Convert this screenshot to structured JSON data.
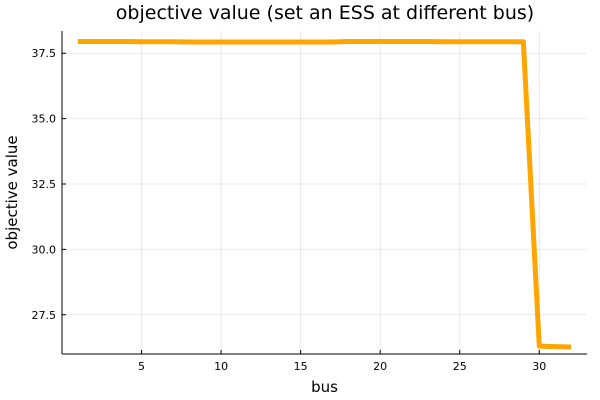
{
  "chart_data": {
    "type": "line",
    "title": "objective value (set an ESS at different bus)",
    "xlabel": "bus",
    "ylabel": "objective value",
    "xlim": [
      0,
      33
    ],
    "ylim": [
      26.0,
      38.35
    ],
    "xticks": [
      5,
      10,
      15,
      20,
      25,
      30
    ],
    "yticks": [
      27.5,
      30.0,
      32.5,
      35.0,
      37.5
    ],
    "xtick_labels": [
      "5",
      "10",
      "15",
      "20",
      "25",
      "30"
    ],
    "ytick_labels": [
      "27.5",
      "30.0",
      "32.5",
      "35.0",
      "37.5"
    ],
    "grid": true,
    "legend": "none",
    "series": [
      {
        "color": "#ffa500",
        "x": [
          1,
          2,
          3,
          4,
          5,
          6,
          7,
          8,
          9,
          10,
          11,
          12,
          13,
          14,
          15,
          16,
          17,
          18,
          19,
          20,
          21,
          22,
          23,
          24,
          25,
          26,
          27,
          28,
          29,
          30,
          31,
          32
        ],
        "y": [
          37.95,
          37.95,
          37.95,
          37.95,
          37.94,
          37.94,
          37.94,
          37.93,
          37.93,
          37.93,
          37.93,
          37.93,
          37.93,
          37.93,
          37.93,
          37.93,
          37.93,
          37.95,
          37.95,
          37.95,
          37.95,
          37.95,
          37.95,
          37.94,
          37.94,
          37.94,
          37.94,
          37.94,
          37.94,
          26.3,
          26.28,
          26.27
        ]
      }
    ]
  }
}
